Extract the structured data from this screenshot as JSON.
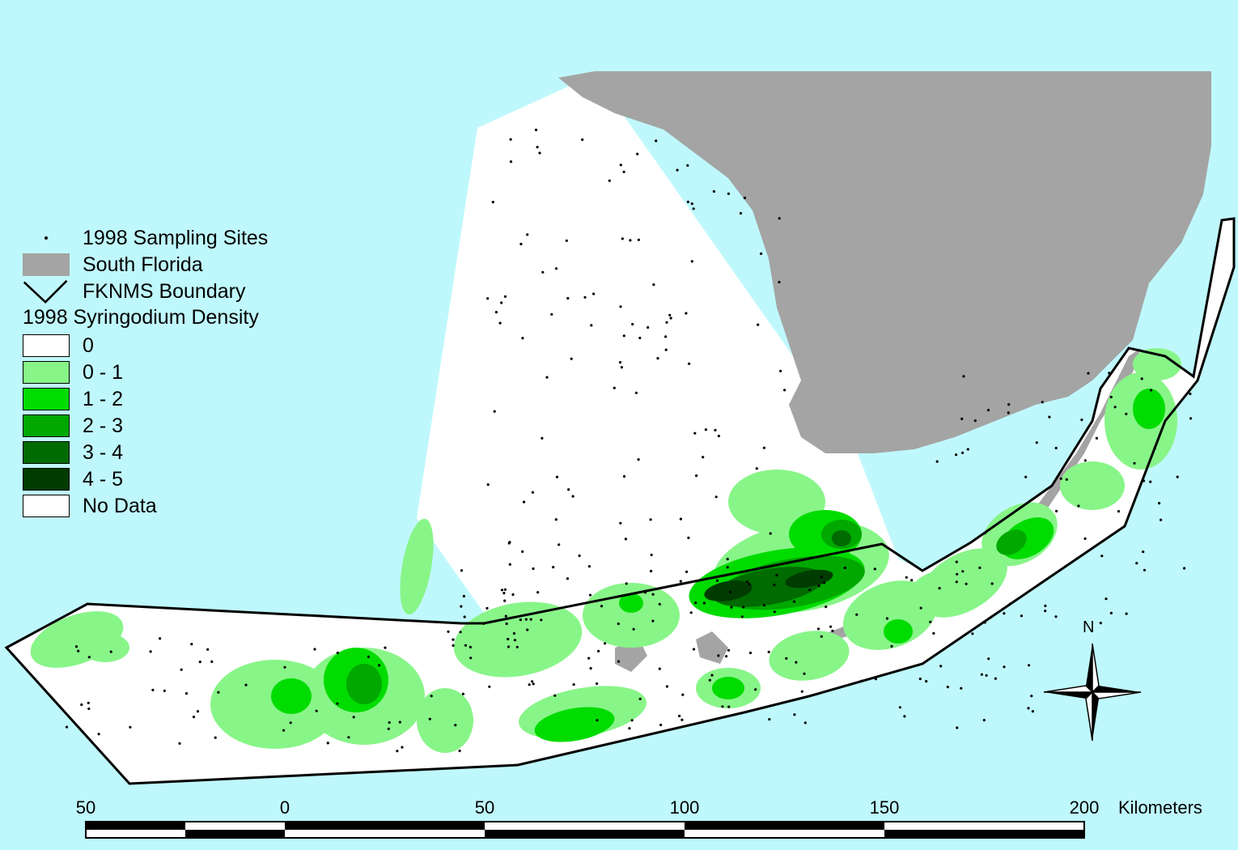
{
  "legend": {
    "sites_label": "1998 Sampling Sites",
    "land_label": "South Florida",
    "boundary_label": "FKNMS Boundary",
    "density_title": "1998 Syringodium Density",
    "classes": [
      {
        "label": "0",
        "color": "#ffffff"
      },
      {
        "label": "0 - 1",
        "color": "#88f588"
      },
      {
        "label": "1 - 2",
        "color": "#00dc00"
      },
      {
        "label": "2 - 3",
        "color": "#00a800"
      },
      {
        "label": "3 - 4",
        "color": "#006b00"
      },
      {
        "label": "4 - 5",
        "color": "#003c00"
      },
      {
        "label": "No Data",
        "color": "#ffffff"
      }
    ]
  },
  "colors": {
    "water": "#bff8fc",
    "land": "#a4a4a4",
    "boundary": "#000000"
  },
  "north_arrow": {
    "label": "N"
  },
  "scale_bar": {
    "ticks": [
      "50",
      "0",
      "50",
      "100",
      "150",
      "200"
    ],
    "unit": "Kilometers"
  }
}
